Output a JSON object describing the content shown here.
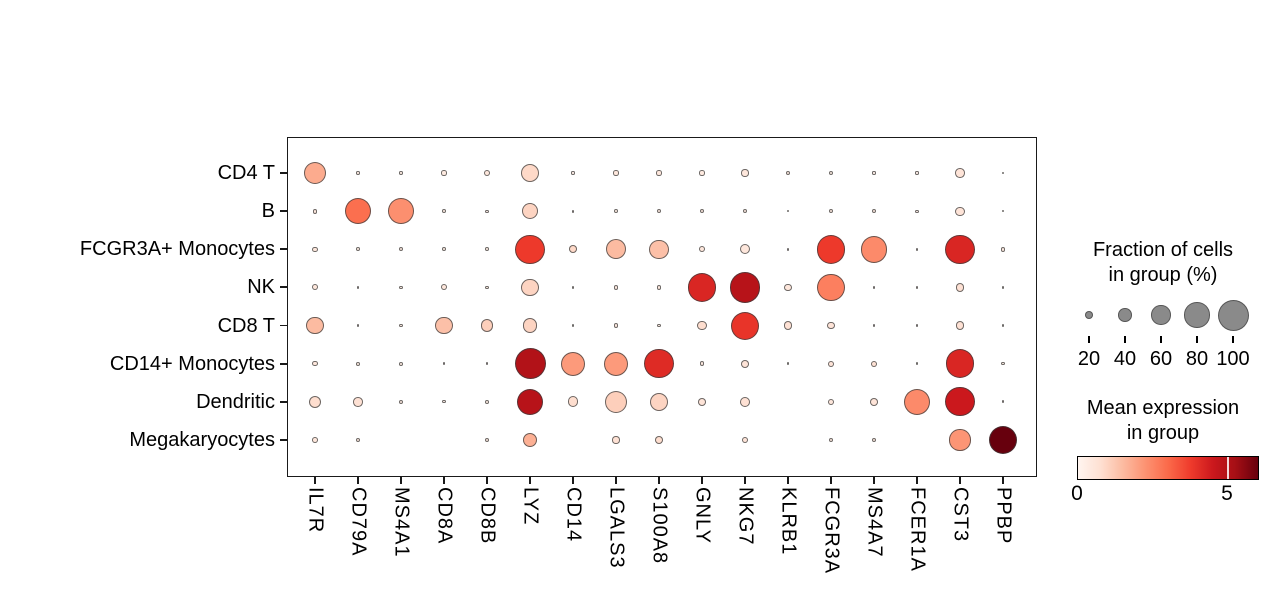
{
  "figure": {
    "background": "#ffffff",
    "dot_edge_color": "rgba(60,60,60,0.75)",
    "legend_dot_color": "#8a8a8a"
  },
  "chart_data": {
    "type": "scatter",
    "subtype": "dotplot",
    "title": "",
    "xlabel": "",
    "ylabel": "",
    "grid": false,
    "x_categories": [
      "IL7R",
      "CD79A",
      "MS4A1",
      "CD8A",
      "CD8B",
      "LYZ",
      "CD14",
      "LGALS3",
      "S100A8",
      "GNLY",
      "NKG7",
      "KLRB1",
      "FCGR3A",
      "MS4A7",
      "FCER1A",
      "CST3",
      "PPBP"
    ],
    "y_categories": [
      "CD4 T",
      "B",
      "FCGR3A+ Monocytes",
      "NK",
      "CD8 T",
      "CD14+ Monocytes",
      "Dendritic",
      "Megakaryocytes"
    ],
    "series": [
      {
        "name": "CD4 T",
        "fraction_pct": [
          72,
          5,
          5,
          11,
          14,
          58,
          4,
          11,
          11,
          11,
          18,
          9,
          8,
          4,
          4,
          26,
          2
        ],
        "mean_expression": [
          1.8,
          0.3,
          0.3,
          0.4,
          0.5,
          0.9,
          0.2,
          0.5,
          0.5,
          0.4,
          0.5,
          0.4,
          0.3,
          0.2,
          0.2,
          0.6,
          0.1
        ]
      },
      {
        "name": "B",
        "fraction_pct": [
          10,
          85,
          82,
          6,
          4,
          48,
          3,
          6,
          9,
          9,
          9,
          2,
          8,
          8,
          4,
          25,
          2
        ],
        "mean_expression": [
          0.5,
          2.9,
          2.3,
          0.3,
          0.2,
          1.0,
          0.2,
          0.3,
          0.4,
          0.4,
          0.4,
          0.1,
          0.4,
          0.4,
          0.2,
          0.6,
          0.1
        ]
      },
      {
        "name": "FCGR3A+ Monocytes",
        "fraction_pct": [
          12,
          6,
          8,
          6,
          6,
          95,
          20,
          62,
          60,
          15,
          28,
          3,
          92,
          85,
          2,
          95,
          9
        ],
        "mean_expression": [
          0.5,
          0.3,
          0.4,
          0.3,
          0.3,
          3.8,
          0.9,
          1.5,
          1.4,
          0.5,
          0.5,
          0.2,
          3.8,
          2.4,
          0.2,
          4.2,
          0.4
        ]
      },
      {
        "name": "NK",
        "fraction_pct": [
          14,
          3,
          6,
          14,
          6,
          52,
          2,
          8,
          8,
          93,
          98,
          18,
          88,
          3,
          3,
          22,
          1
        ],
        "mean_expression": [
          0.5,
          0.2,
          0.3,
          0.5,
          0.3,
          1.0,
          0.1,
          0.4,
          0.4,
          4.2,
          4.9,
          0.5,
          2.6,
          0.2,
          0.2,
          0.7,
          0.1
        ]
      },
      {
        "name": "CD8 T",
        "fraction_pct": [
          52,
          2,
          6,
          52,
          37,
          43,
          2,
          10,
          6,
          25,
          90,
          22,
          18,
          3,
          3,
          22,
          2
        ],
        "mean_expression": [
          1.5,
          0.2,
          0.3,
          1.4,
          1.1,
          1.0,
          0.1,
          0.4,
          0.3,
          0.8,
          3.9,
          0.7,
          0.6,
          0.2,
          0.2,
          0.7,
          0.1
        ]
      },
      {
        "name": "CD14+ Monocytes",
        "fraction_pct": [
          12,
          6,
          6,
          3,
          3,
          100,
          76,
          76,
          94,
          10,
          20,
          2,
          14,
          15,
          2,
          93,
          5
        ],
        "mean_expression": [
          0.5,
          0.3,
          0.3,
          0.2,
          0.2,
          5.0,
          2.1,
          2.1,
          4.1,
          0.4,
          0.6,
          0.1,
          0.6,
          0.7,
          0.1,
          4.2,
          0.3
        ]
      },
      {
        "name": "Dendritic",
        "fraction_pct": [
          35,
          26,
          9,
          4,
          6,
          85,
          30,
          69,
          56,
          20,
          27,
          0,
          15,
          20,
          83,
          94,
          3
        ],
        "mean_expression": [
          0.8,
          0.7,
          0.4,
          0.2,
          0.3,
          4.9,
          0.8,
          1.1,
          1.0,
          0.6,
          0.7,
          0,
          0.5,
          0.6,
          2.4,
          4.5,
          0.2
        ]
      },
      {
        "name": "Megakaryocytes",
        "fraction_pct": [
          13,
          7,
          0,
          0,
          7,
          42,
          0,
          18,
          20,
          0,
          17,
          0,
          7,
          7,
          0,
          66,
          90
        ],
        "mean_expression": [
          0.5,
          0.4,
          0,
          0,
          0.4,
          1.7,
          0,
          0.7,
          0.8,
          0,
          0.6,
          0,
          0.4,
          0.4,
          0,
          2.2,
          6.0
        ]
      }
    ],
    "size_legend": {
      "title_line1": "Fraction of cells",
      "title_line2": "in group (%)",
      "ticks": [
        20,
        40,
        60,
        80,
        100
      ],
      "tick_labels": [
        "20",
        "40",
        "60",
        "80",
        "100"
      ]
    },
    "color_legend": {
      "title_line1": "Mean expression",
      "title_line2": "in group",
      "tick_labels": [
        "0",
        "5"
      ],
      "tick_values": [
        0,
        5
      ],
      "vmin": 0,
      "vmax": 6,
      "colormap": "Reds"
    },
    "colormap_stops": [
      "#fff5f0",
      "#fee0d2",
      "#fcbba1",
      "#fc9272",
      "#fb6a4a",
      "#ef3b2c",
      "#cb181d",
      "#a50f15",
      "#67000d"
    ]
  }
}
